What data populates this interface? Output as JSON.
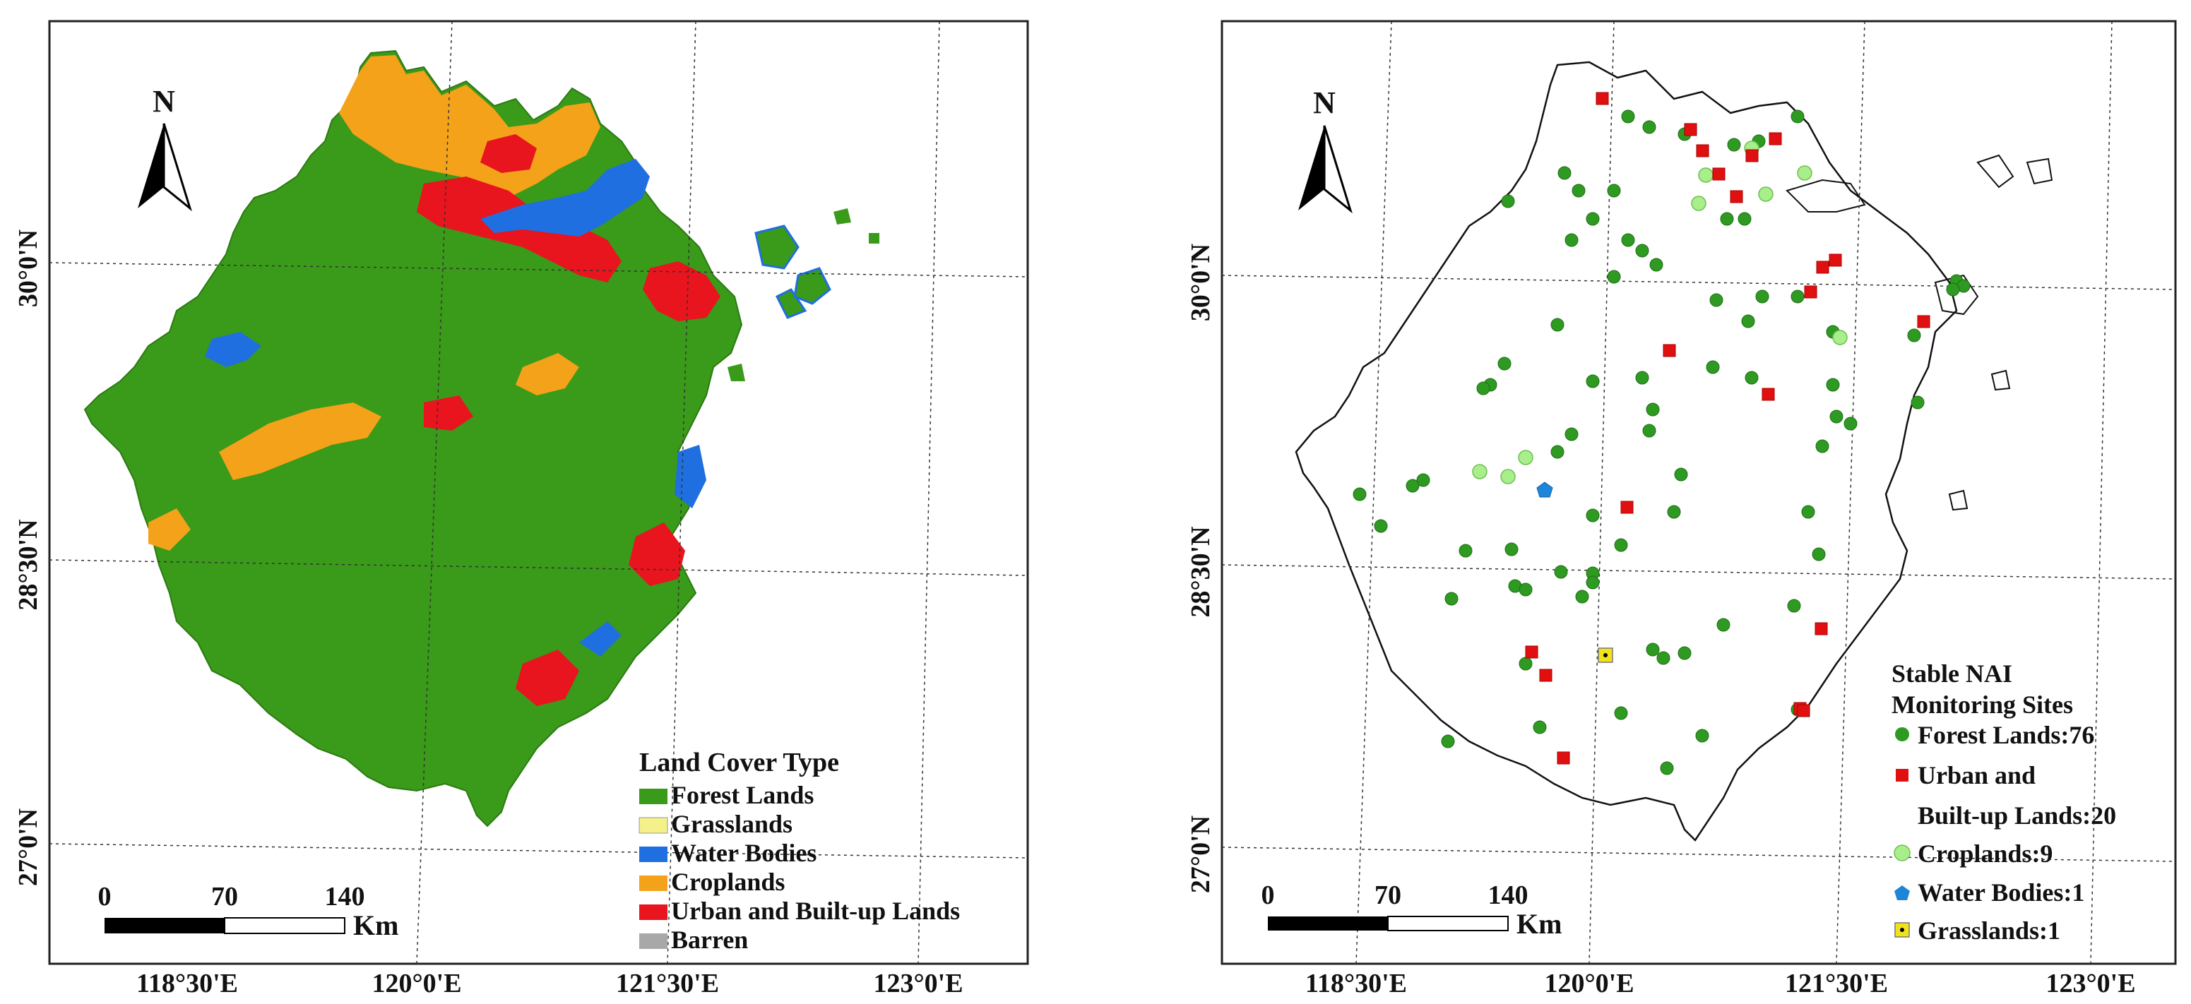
{
  "left_map": {
    "north_label": "N",
    "lat_labels": [
      "30°0'N",
      "28°30'N",
      "27°0'N"
    ],
    "lon_labels": [
      "118°30'E",
      "120°0'E",
      "121°30'E",
      "123°0'E"
    ],
    "scale": {
      "ticks": [
        "0",
        "70",
        "140"
      ],
      "unit": "Km"
    },
    "legend": {
      "title": "Land Cover Type",
      "items": [
        {
          "label": "Forest Lands",
          "color": "#3a9a1a"
        },
        {
          "label": "Grasslands",
          "color": "#f4f08a"
        },
        {
          "label": "Water Bodies",
          "color": "#1f6fe0"
        },
        {
          "label": "Croplands",
          "color": "#f3a21a"
        },
        {
          "label": "Urban and Built-up Lands",
          "color": "#e8141e"
        },
        {
          "label": "Barren",
          "color": "#a8a8a8"
        }
      ]
    }
  },
  "right_map": {
    "north_label": "N",
    "lat_labels": [
      "30°0'N",
      "28°30'N",
      "27°0'N"
    ],
    "lon_labels": [
      "118°30'E",
      "120°0'E",
      "121°30'E",
      "123°0'E"
    ],
    "scale": {
      "ticks": [
        "0",
        "70",
        "140"
      ],
      "unit": "Km"
    },
    "legend": {
      "title_line1": "Stable NAI",
      "title_line2": "Monitoring Sites",
      "items": [
        {
          "label": "Forest Lands:76",
          "symbol": "circle",
          "color": "#2e9a22"
        },
        {
          "label": "Urban and",
          "label2": "Built-up Lands:20",
          "symbol": "square",
          "color": "#e01010"
        },
        {
          "label": "Croplands:9",
          "symbol": "circle",
          "color": "#a8ef8c"
        },
        {
          "label": "Water Bodies:1",
          "symbol": "pentagon",
          "color": "#1e86d8"
        },
        {
          "label": "Grasslands:1",
          "symbol": "square-dot",
          "color": "#f2e21a"
        }
      ]
    }
  }
}
